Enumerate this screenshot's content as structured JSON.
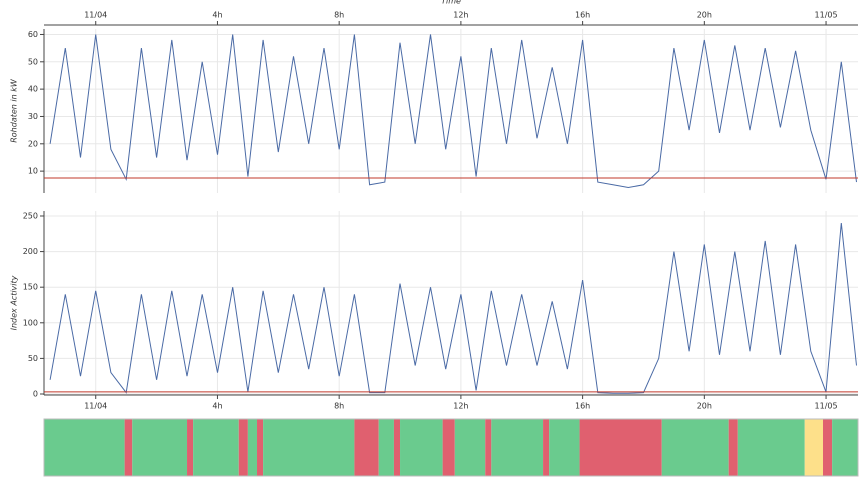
{
  "chart_data": [
    {
      "type": "line",
      "xlabel": "Time",
      "ylabel": "Rohdaten in kW",
      "xaxis_position": "top",
      "xlim": [
        -1.7,
        25.05
      ],
      "ylim": [
        2,
        62
      ],
      "xticks": [
        {
          "value": 0,
          "label": "11/04"
        },
        {
          "value": 4,
          "label": "4h"
        },
        {
          "value": 8,
          "label": "8h"
        },
        {
          "value": 12,
          "label": "12h"
        },
        {
          "value": 16,
          "label": "16h"
        },
        {
          "value": 20,
          "label": "20h"
        },
        {
          "value": 24,
          "label": "11/05"
        }
      ],
      "yticks": [
        10,
        20,
        30,
        40,
        50,
        60
      ],
      "grid": true,
      "color": "#4a6aa5",
      "hline": 7.5,
      "hline_color": "#c0392b",
      "x": [
        -1.5,
        -1,
        -0.5,
        0,
        0.5,
        1,
        1.5,
        2,
        2.5,
        3,
        3.5,
        4,
        4.5,
        5,
        5.5,
        6,
        6.5,
        7,
        7.5,
        8,
        8.5,
        9,
        9.5,
        10,
        10.5,
        11,
        11.5,
        12,
        12.5,
        13,
        13.5,
        14,
        14.5,
        15,
        15.5,
        16,
        16.5,
        17,
        17.5,
        18,
        18.5,
        19,
        19.5,
        20,
        20.5,
        21,
        21.5,
        22,
        22.5,
        23,
        23.5,
        24,
        24.5,
        25
      ],
      "values": [
        20,
        55,
        15,
        60,
        18,
        7,
        55,
        15,
        58,
        14,
        50,
        16,
        60,
        8,
        58,
        17,
        52,
        20,
        55,
        18,
        60,
        5,
        6,
        57,
        20,
        60,
        18,
        52,
        8,
        55,
        20,
        58,
        22,
        48,
        20,
        58,
        6,
        5,
        4,
        5,
        10,
        55,
        25,
        58,
        24,
        56,
        25,
        55,
        26,
        54,
        25,
        7,
        50,
        6
      ]
    },
    {
      "type": "line",
      "ylabel": "Index Activity",
      "xaxis_position": "bottom",
      "xlim": [
        -1.7,
        25.05
      ],
      "ylim": [
        -1.4,
        257
      ],
      "xticks": [
        {
          "value": 0,
          "label": "11/04"
        },
        {
          "value": 4,
          "label": "4h"
        },
        {
          "value": 8,
          "label": "8h"
        },
        {
          "value": 12,
          "label": "12h"
        },
        {
          "value": 16,
          "label": "16h"
        },
        {
          "value": 20,
          "label": "20h"
        },
        {
          "value": 24,
          "label": "11/05"
        }
      ],
      "yticks": [
        0,
        50,
        100,
        150,
        200,
        250
      ],
      "grid": true,
      "color": "#4a6aa5",
      "hline": 3,
      "hline_color": "#c0392b",
      "x": [
        -1.5,
        -1,
        -0.5,
        0,
        0.5,
        1,
        1.5,
        2,
        2.5,
        3,
        3.5,
        4,
        4.5,
        5,
        5.5,
        6,
        6.5,
        7,
        7.5,
        8,
        8.5,
        9,
        9.5,
        10,
        10.5,
        11,
        11.5,
        12,
        12.5,
        13,
        13.5,
        14,
        14.5,
        15,
        15.5,
        16,
        16.5,
        17,
        17.5,
        18,
        18.5,
        19,
        19.5,
        20,
        20.5,
        21,
        21.5,
        22,
        22.5,
        23,
        23.5,
        24,
        24.5,
        25
      ],
      "values": [
        20,
        140,
        25,
        145,
        30,
        2,
        140,
        20,
        145,
        25,
        140,
        30,
        150,
        3,
        145,
        30,
        140,
        35,
        150,
        25,
        140,
        2,
        2,
        155,
        40,
        150,
        35,
        140,
        5,
        145,
        40,
        140,
        40,
        130,
        35,
        160,
        2,
        1,
        1,
        2,
        50,
        200,
        60,
        210,
        55,
        200,
        60,
        215,
        55,
        210,
        60,
        3,
        240,
        40
      ]
    },
    {
      "type": "band",
      "xlim": [
        -1.7,
        25.05
      ],
      "x": [
        -1.7,
        0.95,
        1.2,
        3.0,
        3.2,
        4.7,
        5.0,
        5.3,
        5.5,
        8.5,
        9.3,
        9.8,
        10.0,
        11.4,
        11.8,
        12.8,
        13.0,
        14.7,
        14.9,
        15.9,
        18.6,
        20.8,
        21.1,
        23.3,
        23.9,
        24.2,
        25.05
      ],
      "colors": [
        "#6acb8e",
        "#e0606f",
        "#6acb8e",
        "#e0606f",
        "#6acb8e",
        "#e0606f",
        "#6acb8e",
        "#e0606f",
        "#6acb8e",
        "#e0606f",
        "#6acb8e",
        "#e0606f",
        "#6acb8e",
        "#e0606f",
        "#6acb8e",
        "#e0606f",
        "#6acb8e",
        "#e0606f",
        "#6acb8e",
        "#e0606f",
        "#6acb8e",
        "#e0606f",
        "#6acb8e",
        "#fde08a",
        "#e0606f",
        "#6acb8e"
      ]
    }
  ]
}
